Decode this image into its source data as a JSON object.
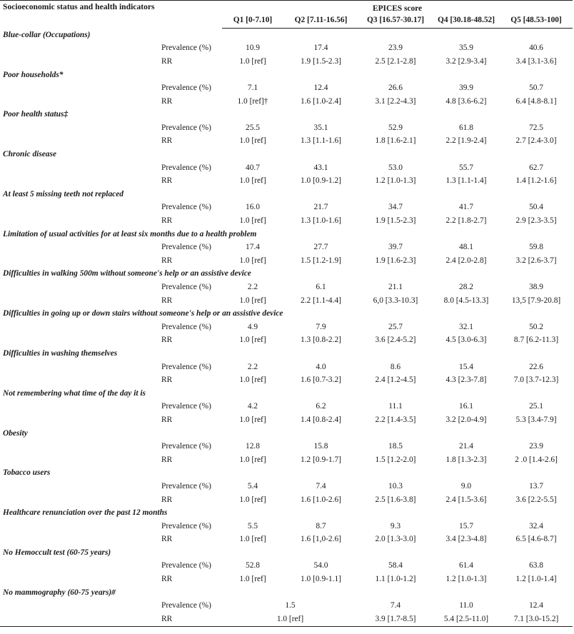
{
  "header": {
    "left": "Socioeconomic status and health indicators",
    "group": "EPICES score",
    "quintiles": [
      "Q1 [0-7.10]",
      "Q2 [7.11-16.56]",
      "Q3 [16.57-30.17]",
      "Q4 [30.18-48.52]",
      "Q5 [48.53-100]"
    ]
  },
  "row_labels": {
    "prevalence": "Prevalence (%)",
    "rr": "RR"
  },
  "categories": [
    {
      "name": "Blue-collar (Occupations)",
      "prevalence": [
        "10.9",
        "17.4",
        "23.9",
        "35.9",
        "40.6"
      ],
      "rr": [
        "1.0 [ref]",
        "1.9 [1.5-2.3]",
        "2.5 [2.1-2.8]",
        "3.2 [2.9-3.4]",
        "3.4 [3.1-3.6]"
      ]
    },
    {
      "name": "Poor households*",
      "prevalence": [
        "7.1",
        "12.4",
        "26.6",
        "39.9",
        "50.7"
      ],
      "rr": [
        "1.0 [ref]†",
        "1.6 [1.0-2.4]",
        "3.1 [2.2-4.3]",
        "4.8 [3.6-6.2]",
        "6.4 [4.8-8.1]"
      ]
    },
    {
      "name": "Poor health status‡",
      "prevalence": [
        "25.5",
        "35.1",
        "52.9",
        "61.8",
        "72.5"
      ],
      "rr": [
        "1.0 [ref]",
        "1.3 [1.1-1.6]",
        "1.8 [1.6-2.1]",
        "2.2 [1.9-2.4]",
        "2.7 [2.4-3.0]"
      ]
    },
    {
      "name": "Chronic disease",
      "prevalence": [
        "40.7",
        "43.1",
        "53.0",
        "55.7",
        "62.7"
      ],
      "rr": [
        "1.0 [ref]",
        "1.0 [0.9-1.2]",
        "1.2 [1.0-1.3]",
        "1.3 [1.1-1.4]",
        "1.4 [1.2-1.6]"
      ]
    },
    {
      "name": "At least 5 missing teeth not replaced",
      "prevalence": [
        "16.0",
        "21.7",
        "34.7",
        "41.7",
        "50.4"
      ],
      "rr": [
        "1.0 [ref]",
        "1.3 [1.0-1.6]",
        "1.9 [1.5-2.3]",
        "2.2 [1.8-2.7]",
        "2.9 [2.3-3.5]"
      ]
    },
    {
      "name": "Limitation of usual activities for at least six months due to a health problem",
      "prevalence": [
        "17.4",
        "27.7",
        "39.7",
        "48.1",
        "59.8"
      ],
      "rr": [
        "1.0 [ref]",
        "1.5 [1.2-1.9]",
        "1.9 [1.6-2.3]",
        "2.4 [2.0-2.8]",
        "3.2 [2.6-3.7]"
      ]
    },
    {
      "name": "Difficulties in walking 500m without someone's help or an assistive device",
      "prevalence": [
        "2.2",
        "6.1",
        "21.1",
        "28.2",
        "38.9"
      ],
      "rr": [
        "1.0 [ref]",
        "2.2 [1.1-4.4]",
        "6,0 [3.3-10.3]",
        "8.0 [4.5-13.3]",
        "13,5 [7.9-20.8]"
      ]
    },
    {
      "name": "Difficulties in going up or down stairs without someone's help or an assistive device",
      "prevalence": [
        "4.9",
        "7.9",
        "25.7",
        "32.1",
        "50.2"
      ],
      "rr": [
        "1.0 [ref]",
        "1.3 [0.8-2.2]",
        "3.6 [2.4-5.2]",
        "4.5 [3.0-6.3]",
        "8.7 [6.2-11.3]"
      ]
    },
    {
      "name": "Difficulties in washing themselves",
      "prevalence": [
        "2.2",
        "4.0",
        "8.6",
        "15.4",
        "22.6"
      ],
      "rr": [
        "1.0 [ref]",
        "1.6 [0.7-3.2]",
        "2.4 [1.2-4.5]",
        "4.3 [2.3-7.8]",
        "7.0 [3.7-12.3]"
      ]
    },
    {
      "name": "Not remembering what time of the day it is",
      "prevalence": [
        "4.2",
        "6.2",
        "11.1",
        "16.1",
        "25.1"
      ],
      "rr": [
        "1.0 [ref]",
        "1.4 [0.8-2.4]",
        "2.2 [1.4-3.5]",
        "3.2 [2.0-4.9]",
        "5.3 [3.4-7.9]"
      ]
    },
    {
      "name": "Obesity",
      "prevalence": [
        "12.8",
        "15.8",
        "18.5",
        "21.4",
        "23.9"
      ],
      "rr": [
        "1.0 [ref]",
        "1.2 [0.9-1.7]",
        "1.5 [1.2-2.0]",
        "1.8 [1.3-2.3]",
        "2 .0 [1.4-2.6]"
      ]
    },
    {
      "name": "Tobacco users",
      "prevalence": [
        "5.4",
        "7.4",
        "10.3",
        "9.0",
        "13.7"
      ],
      "rr": [
        "1.0 [ref]",
        "1.6 [1.0-2.6]",
        "2.5 [1.6-3.8]",
        "2.4 [1.5-3.6]",
        "3.6 [2.2-5.5]"
      ]
    },
    {
      "name": "Healthcare renunciation over the past 12 months",
      "prevalence": [
        "5.5",
        "8.7",
        "9.3",
        "15.7",
        "32.4"
      ],
      "rr": [
        "1.0 [ref]",
        "1.6 [1,0-2.6]",
        "2.0 [1.3-3.0]",
        "3.4 [2.3-4.8]",
        "6.5 [4.6-8.7]"
      ]
    },
    {
      "name": "No Hemoccult test (60-75 years)",
      "prevalence": [
        "52.8",
        "54.0",
        "58.4",
        "61.4",
        "63.8"
      ],
      "rr": [
        "1.0 [ref]",
        "1.0 [0.9-1.1]",
        "1.1 [1.0-1.2]",
        "1.2 [1.0-1.3]",
        "1.2 [1.0-1.4]"
      ]
    }
  ],
  "last_category": {
    "name": "No mammography (60-75 years)#",
    "prevalence_q12": "1.5",
    "prevalence": [
      "7.4",
      "11.0",
      "12.4"
    ],
    "rr_q12": "1.0 [ref]",
    "rr": [
      "3.9 [1.7-8.5]",
      "5.4 [2.5-11.0]",
      "7.1 [3.0-15.2]"
    ]
  }
}
